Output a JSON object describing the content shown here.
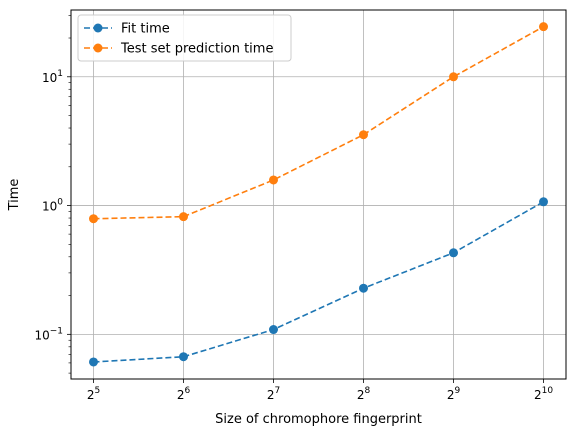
{
  "chart_data": {
    "type": "line",
    "xlabel": "Size of chromophore fingerprint",
    "ylabel": "Time",
    "x": [
      5,
      6,
      7,
      8,
      9,
      10
    ],
    "x_scale": "log2",
    "y_scale": "log10",
    "xtick_labels": [
      {
        "base": "2",
        "exp": "5"
      },
      {
        "base": "2",
        "exp": "6"
      },
      {
        "base": "2",
        "exp": "7"
      },
      {
        "base": "2",
        "exp": "8"
      },
      {
        "base": "2",
        "exp": "9"
      },
      {
        "base": "2",
        "exp": "10"
      }
    ],
    "ytick_labels": [
      {
        "value": -1,
        "base": "10",
        "exp": "−1"
      },
      {
        "value": 0,
        "base": "10",
        "exp": "0"
      },
      {
        "value": 1,
        "base": "10",
        "exp": "1"
      }
    ],
    "ylim": [
      0.045,
      33
    ],
    "grid": true,
    "legend_position": "top-left",
    "series": [
      {
        "name": "Fit time",
        "color": "#1f77b4",
        "values": [
          0.061,
          0.067,
          0.109,
          0.228,
          0.43,
          1.07
        ]
      },
      {
        "name": "Test set prediction time",
        "color": "#ff7f0e",
        "values": [
          0.79,
          0.82,
          1.58,
          3.55,
          10.0,
          24.5
        ]
      }
    ]
  }
}
